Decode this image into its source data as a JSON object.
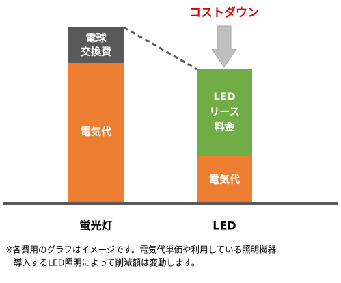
{
  "callout": "コストダウン",
  "bars": [
    {
      "label": "蛍光灯",
      "segments": [
        {
          "lines": [
            "電気代"
          ]
        },
        {
          "lines": [
            "電球",
            "交換費"
          ]
        }
      ]
    },
    {
      "label": "LED",
      "segments": [
        {
          "lines": [
            "電気代"
          ]
        },
        {
          "lines": [
            "LED",
            "リース",
            "料金"
          ]
        }
      ]
    }
  ],
  "note": [
    "※各費用のグラフはイメージです。電気代単価や利用している照明機器",
    "導入するLED照明によって削減額は変動します。"
  ]
}
